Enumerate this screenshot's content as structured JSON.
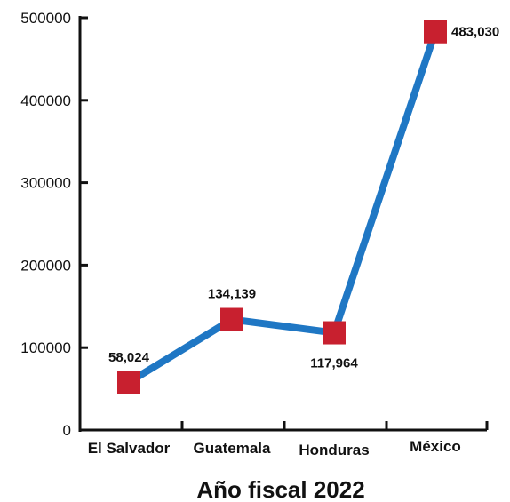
{
  "chart_data": {
    "type": "line",
    "title": "Año fiscal 2022",
    "xlabel": "",
    "ylabel": "",
    "categories": [
      "El Salvador",
      "Guatemala",
      "Honduras",
      "México"
    ],
    "series": [
      {
        "values": [
          58024,
          134139,
          117964,
          483030
        ],
        "data_labels": [
          "58,024",
          "134,139",
          "117,964",
          "483,030"
        ]
      }
    ],
    "yticks": [
      "0",
      "100000",
      "200000",
      "300000",
      "400000",
      "500000"
    ],
    "ylim": [
      0,
      500000
    ],
    "grid": false,
    "legend": "none",
    "colors": {
      "line": "#1f77c4",
      "marker": "#c8202f",
      "axis": "#111111"
    }
  }
}
